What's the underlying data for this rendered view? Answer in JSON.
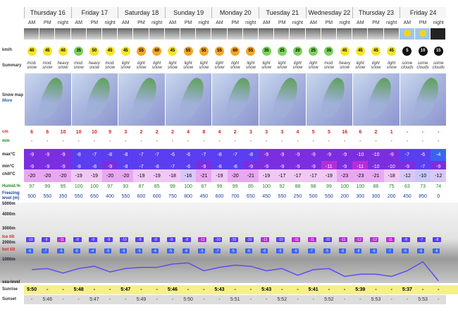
{
  "labels": {
    "wind": "km/h",
    "summary": "Summary",
    "snowmap": "Snow map",
    "more": "More",
    "snow": "cm",
    "rain": "mm",
    "max": "max°C",
    "min": "min°C",
    "chill": "chill°C",
    "humid": "Humid.%",
    "freezing": "Freezing level (m)",
    "lvl5000": "5000m",
    "lvl4000": "4000m",
    "lvl3000": "3000m",
    "lvl2000": "2000m",
    "lvl1000": "1000m",
    "sealevel": "sea-level",
    "ice": "Ice tilt",
    "hot": "hot tilt",
    "sunrise": "Sunrise",
    "sunset": "Sunset"
  },
  "days": [
    "Thursday 16",
    "Friday 17",
    "Saturday 18",
    "Sunday 19",
    "Monday 20",
    "Tuesday 21",
    "Wednesday 22",
    "Thursday 23",
    "Friday 24"
  ],
  "periods": [
    "AM",
    "PM",
    "night"
  ],
  "wind": [
    "40",
    "45",
    "40",
    "35",
    "50",
    "45",
    "45",
    "55",
    "60",
    "45",
    "55",
    "55",
    "55",
    "60",
    "55",
    "35",
    "25",
    "20",
    "25",
    "35",
    "45",
    "45",
    "45",
    "45",
    "5",
    "10",
    "15"
  ],
  "summary": [
    "mod. snow",
    "mod. snow",
    "heavy snow",
    "mod. snow",
    "heavy snow",
    "mod. snow",
    "light snow",
    "light snow",
    "light snow",
    "light snow",
    "light snow",
    "light snow",
    "light snow",
    "light snow",
    "light snow",
    "light snow",
    "light snow",
    "light snow",
    "light snow",
    "mod. snow",
    "heavy snow",
    "light snow",
    "light snow",
    "light snow",
    "some clouds",
    "some clouds",
    "some clouds"
  ],
  "snow": [
    "6",
    "6",
    "10",
    "10",
    "10",
    "9",
    "3",
    "2",
    "2",
    "2",
    "4",
    "8",
    "4",
    "2",
    "3",
    "3",
    "3",
    "4",
    "5",
    "5",
    "16",
    "6",
    "2",
    "1",
    "-",
    "-",
    "-"
  ],
  "rain": [
    "-",
    "-",
    "-",
    "-",
    "-",
    "-",
    "-",
    "-",
    "-",
    "-",
    "-",
    "-",
    "-",
    "-",
    "-",
    "-",
    "-",
    "-",
    "-",
    "-",
    "-",
    "-",
    "-",
    "-",
    "-",
    "-",
    "-"
  ],
  "max": [
    "-9",
    "-9",
    "-9",
    "-8",
    "-7",
    "-8",
    "-8",
    "-7",
    "-7",
    "-6",
    "-6",
    "-7",
    "-8",
    "-7",
    "-8",
    "-9",
    "-9",
    "-9",
    "-9",
    "-9",
    "-9",
    "-10",
    "-10",
    "-9",
    "-7",
    "-6",
    "-4"
  ],
  "min": [
    "-9",
    "-9",
    "-9",
    "-8",
    "-8",
    "-9",
    "-8",
    "-7",
    "-8",
    "-7",
    "-6",
    "-9",
    "-8",
    "-8",
    "-9",
    "-9",
    "-9",
    "-9",
    "-9",
    "-11",
    "-9",
    "-11",
    "-10",
    "-10",
    "-9",
    "-7",
    "-9"
  ],
  "chill": [
    "-20",
    "-20",
    "-20",
    "-19",
    "-19",
    "-20",
    "-20",
    "-19",
    "-19",
    "-18",
    "-16",
    "-21",
    "-19",
    "-20",
    "-21",
    "-19",
    "-17",
    "-17",
    "-17",
    "-19",
    "-23",
    "-23",
    "-21",
    "-18",
    "-12",
    "-10",
    "-12"
  ],
  "humid": [
    "97",
    "99",
    "95",
    "100",
    "100",
    "97",
    "93",
    "87",
    "85",
    "99",
    "100",
    "87",
    "99",
    "99",
    "85",
    "100",
    "92",
    "88",
    "98",
    "99",
    "100",
    "100",
    "86",
    "75",
    "63",
    "73",
    "74"
  ],
  "freezing": [
    "500",
    "550",
    "350",
    "550",
    "650",
    "400",
    "550",
    "600",
    "600",
    "750",
    "800",
    "450",
    "600",
    "700",
    "650",
    "450",
    "550",
    "250",
    "500",
    "550",
    "200",
    "300",
    "300",
    "200",
    "450",
    "850",
    "0"
  ],
  "ice": [
    "-10",
    "-9",
    "-11",
    "-8",
    "-9",
    "-9",
    "-10",
    "-8",
    "-9",
    "-9",
    "-8",
    "-11",
    "-10",
    "-10",
    "-10",
    "-11",
    "-10",
    "-11",
    "-11",
    "-10",
    "-11",
    "-12",
    "-12",
    "-11",
    "-8",
    "-7",
    "-8"
  ],
  "hot": [
    "-6",
    "-7",
    "-6",
    "-6",
    "-4",
    "-5",
    "-6",
    "-5",
    "-4",
    "-5",
    "-6",
    "-5",
    "-7",
    "-5",
    "-6",
    "-6",
    "-5",
    "-6",
    "-7",
    "-5",
    "-6",
    "-8",
    "-6",
    "-7",
    "-6",
    "-6",
    "-6"
  ],
  "sunrise": [
    "5:50",
    "-",
    "-",
    "5:48",
    "-",
    "-",
    "5:47",
    "-",
    "-",
    "5:46",
    "-",
    "-",
    "5:43",
    "-",
    "-",
    "5:43",
    "-",
    "-",
    "5:41",
    "-",
    "-",
    "5:39",
    "-",
    "-",
    "5:37",
    "-",
    "-"
  ],
  "sunset": [
    "-",
    "5:46",
    "-",
    "-",
    "5:47",
    "-",
    "-",
    "5:49",
    "-",
    "-",
    "5:50",
    "-",
    "-",
    "5:51",
    "-",
    "-",
    "5:52",
    "-",
    "-",
    "5:52",
    "-",
    "-",
    "5:53",
    "-",
    "-",
    "5:53",
    "-"
  ],
  "colors": {
    "snowRed": "#e02020",
    "cold1": "#5a3ef0",
    "cold2": "#7a2ee0",
    "warm": "#3b64f0",
    "humid": "#1a8a1a",
    "freeze": "#1a3ea0",
    "sunYellow": "#f5f08a",
    "line": "#5a4ef0"
  }
}
